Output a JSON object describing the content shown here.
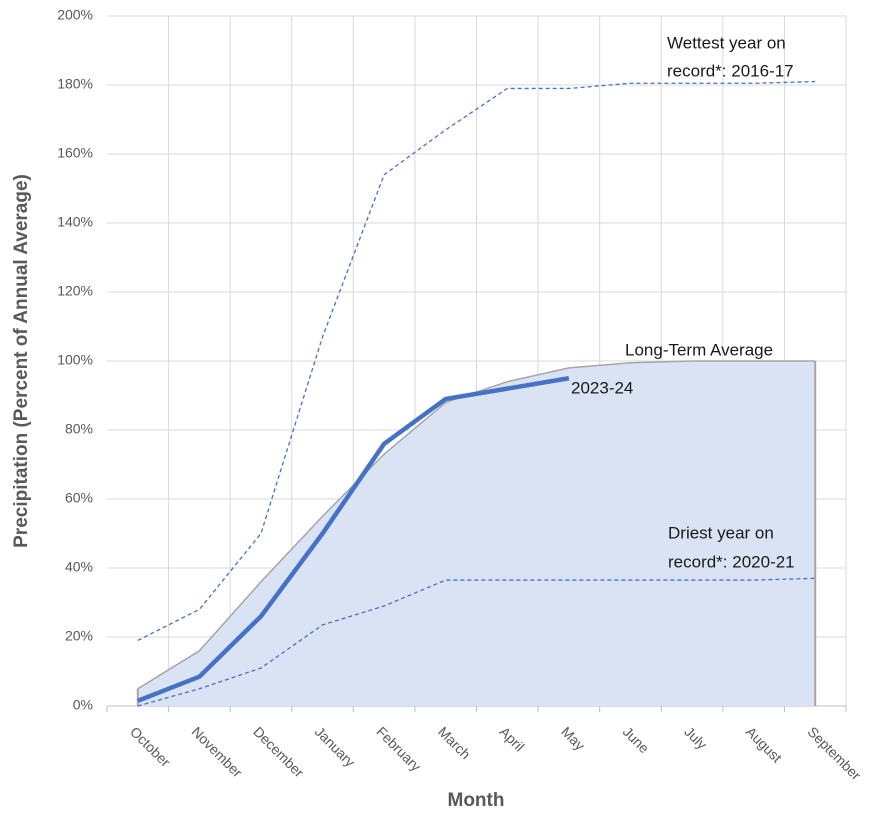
{
  "chart_data": {
    "type": "line",
    "x_label": "Month",
    "y_label": "Precipitation (Percent of Annual Average)",
    "categories": [
      "October",
      "November",
      "December",
      "January",
      "February",
      "March",
      "April",
      "May",
      "June",
      "July",
      "August",
      "September"
    ],
    "ylim": [
      0,
      200
    ],
    "yticks": [
      {
        "value": 0,
        "label": "0%"
      },
      {
        "value": 20,
        "label": "20%"
      },
      {
        "value": 40,
        "label": "40%"
      },
      {
        "value": 60,
        "label": "60%"
      },
      {
        "value": 80,
        "label": "80%"
      },
      {
        "value": 100,
        "label": "100%"
      },
      {
        "value": 120,
        "label": "120%"
      },
      {
        "value": 140,
        "label": "140%"
      },
      {
        "value": 160,
        "label": "160%"
      },
      {
        "value": 180,
        "label": "180%"
      },
      {
        "value": 200,
        "label": "200%"
      }
    ],
    "grid": true,
    "series": [
      {
        "name": "Long-Term Average",
        "color": "#a6a6a6",
        "fill": "#dae3f3",
        "dashed": false,
        "width": 1.5,
        "values": [
          5,
          16,
          36,
          55,
          73,
          88,
          94,
          98,
          99.5,
          100,
          100,
          100
        ]
      },
      {
        "name_lines": [
          "Wettest year on",
          "record*: 2016-17"
        ],
        "color": "#4472c4",
        "dashed": true,
        "width": 1.3,
        "values": [
          19,
          28,
          50,
          107,
          154,
          167,
          179,
          179,
          180.5,
          180.5,
          180.5,
          181
        ]
      },
      {
        "name_lines": [
          "Driest year on",
          "record*: 2020-21"
        ],
        "color": "#4472c4",
        "dashed": true,
        "width": 1.3,
        "values": [
          0,
          5,
          11,
          23.5,
          29,
          36.5,
          36.5,
          36.5,
          36.5,
          36.5,
          36.5,
          37
        ]
      },
      {
        "name": "2023-24",
        "color": "#4472c4",
        "dashed": false,
        "width": 4.5,
        "values": [
          1.5,
          8.5,
          26,
          50,
          76,
          89,
          92,
          95,
          null,
          null,
          null,
          null
        ]
      }
    ]
  }
}
